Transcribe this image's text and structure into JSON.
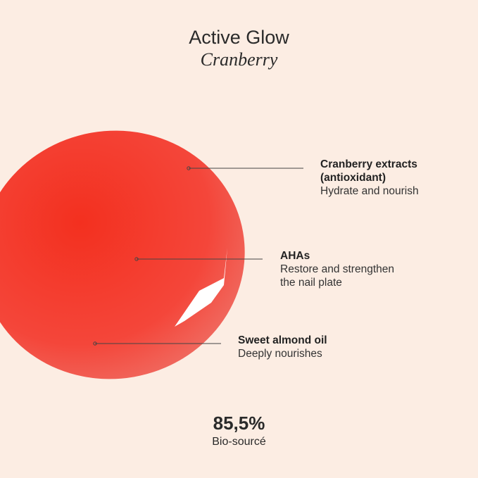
{
  "header": {
    "title": "Active Glow",
    "subtitle": "Cranberry"
  },
  "ingredients": [
    {
      "name": "Cranberry extracts",
      "name2": "(antioxidant)",
      "benefit": "Hydrate and nourish"
    },
    {
      "name": "AHAs",
      "benefit": "Restore and strengthen",
      "benefit2": "the nail plate"
    },
    {
      "name": "Sweet almond oil",
      "benefit": "Deeply nourishes"
    }
  ],
  "footer": {
    "value": "85,5%",
    "label": "Bio-sourcé"
  },
  "colors": {
    "background": "#fcede3",
    "polish": "#f4382b",
    "text": "#2a2a2a"
  }
}
